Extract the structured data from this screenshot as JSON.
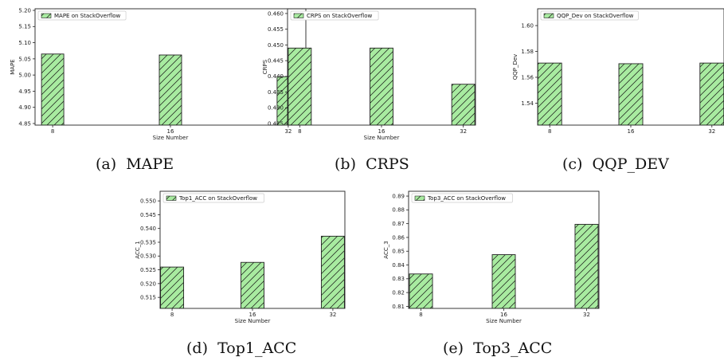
{
  "chart_data": [
    {
      "type": "bar",
      "caption": "(a)  MAPE",
      "categories": [
        "8",
        "16",
        "32"
      ],
      "series": [
        {
          "name": "MAPE on StackOverflow",
          "values": [
            5.065,
            5.062,
            4.995
          ]
        }
      ],
      "xlabel": "Size Number",
      "ylabel": "MAPE",
      "ylim": [
        4.845,
        5.205
      ],
      "yticks": [
        "4.85",
        "4.90",
        "4.95",
        "5.00",
        "5.05",
        "5.10",
        "5.15",
        "5.20"
      ],
      "legend": "top-left",
      "grid": false
    },
    {
      "type": "bar",
      "caption": "(b)  CRPS",
      "categories": [
        "8",
        "16",
        "32"
      ],
      "series": [
        {
          "name": "CRPS on StackOverflow",
          "values": [
            0.449,
            0.449,
            0.4375
          ]
        }
      ],
      "xlabel": "Size Number",
      "ylabel": "CRPS",
      "ylim": [
        0.4245,
        0.4615
      ],
      "yticks": [
        "0.425",
        "0.430",
        "0.435",
        "0.440",
        "0.445",
        "0.450",
        "0.455",
        "0.460"
      ],
      "legend": "top-left",
      "grid": false
    },
    {
      "type": "bar",
      "caption": "(c)  QQP_DEV",
      "categories": [
        "8",
        "16",
        "32"
      ],
      "series": [
        {
          "name": "QQP_Dev on StackOverflow",
          "values": [
            1.571,
            1.5705,
            1.571
          ]
        }
      ],
      "xlabel": "",
      "ylabel": "QQP_Dev",
      "ylim": [
        1.523,
        1.613
      ],
      "yticks": [
        "1.54",
        "1.56",
        "1.58",
        "1.60"
      ],
      "legend": "top-left",
      "grid": false
    },
    {
      "type": "bar",
      "caption": "(d)  Top1_ACC",
      "categories": [
        "8",
        "16",
        "32"
      ],
      "series": [
        {
          "name": "Top1_ACC on StackOverflow",
          "values": [
            0.526,
            0.5277,
            0.5372
          ]
        }
      ],
      "xlabel": "Size Number",
      "ylabel": "ACC_1",
      "ylim": [
        0.511,
        0.5535
      ],
      "yticks": [
        "0.515",
        "0.520",
        "0.525",
        "0.530",
        "0.535",
        "0.540",
        "0.545",
        "0.550"
      ],
      "legend": "top-left",
      "grid": false
    },
    {
      "type": "bar",
      "caption": "(e)  Top3_ACC",
      "categories": [
        "8",
        "16",
        "32"
      ],
      "series": [
        {
          "name": "Top3_ACC on StackOverflow",
          "values": [
            0.8335,
            0.8475,
            0.8695
          ]
        }
      ],
      "xlabel": "Size Number",
      "ylabel": "ACC_3",
      "ylim": [
        0.8085,
        0.8935
      ],
      "yticks": [
        "0.81",
        "0.82",
        "0.83",
        "0.84",
        "0.85",
        "0.86",
        "0.87",
        "0.88",
        "0.89"
      ],
      "legend": "top-left",
      "grid": false
    }
  ],
  "colors": {
    "bar_fill": "#a8eba0",
    "bar_edge": "#222222",
    "axis": "#222222"
  }
}
